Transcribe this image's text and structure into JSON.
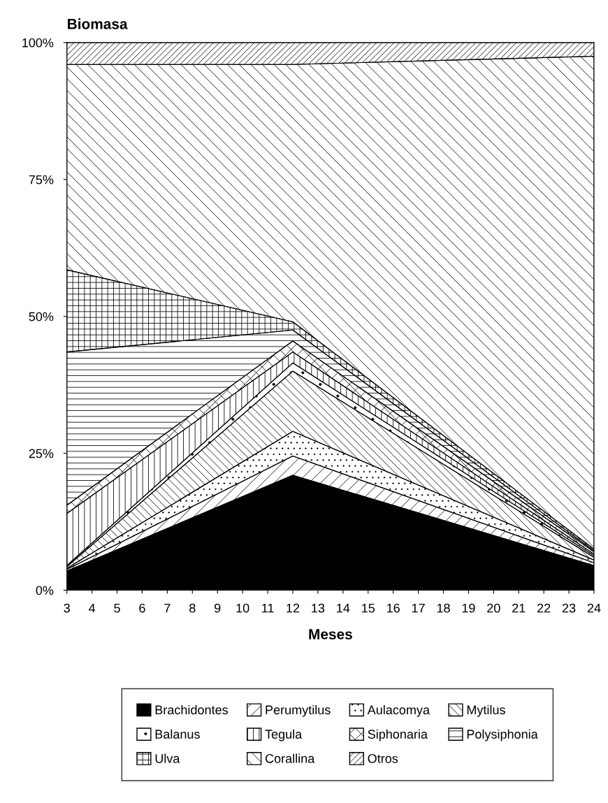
{
  "chart_data": {
    "type": "area",
    "stacked": true,
    "title": "Biomasa",
    "xlabel": "Meses",
    "x": [
      3,
      12,
      24
    ],
    "xlim": [
      3,
      24
    ],
    "xticks": [
      3,
      4,
      5,
      6,
      7,
      8,
      9,
      10,
      11,
      12,
      13,
      14,
      15,
      16,
      17,
      18,
      19,
      20,
      21,
      22,
      23,
      24
    ],
    "ylim": [
      0,
      100
    ],
    "yticks": [
      {
        "value": 0,
        "label": "0%"
      },
      {
        "value": 25,
        "label": "25%"
      },
      {
        "value": 50,
        "label": "50%"
      },
      {
        "value": 75,
        "label": "75%"
      },
      {
        "value": 100,
        "label": "100%"
      }
    ],
    "grid": false,
    "legend": "bottom",
    "series": [
      {
        "name": "Brachidontes",
        "color": "#000000",
        "values": [
          3.5,
          21,
          4.5
        ]
      },
      {
        "name": "Perumytilus",
        "color": "#000000",
        "values": [
          0.3,
          3.5,
          0.5
        ]
      },
      {
        "name": "Aulacomya",
        "color": "#000000",
        "values": [
          0.2,
          4.5,
          0.5
        ]
      },
      {
        "name": "Mytilus",
        "color": "#000000",
        "values": [
          0.3,
          11,
          0.5
        ]
      },
      {
        "name": "Balanus",
        "color": "#000000",
        "values": [
          0.2,
          1.5,
          0.3
        ]
      },
      {
        "name": "Tegula",
        "color": "#000000",
        "values": [
          9.5,
          2,
          0.3
        ]
      },
      {
        "name": "Siphonaria",
        "color": "#000000",
        "values": [
          1.5,
          2,
          0.4
        ]
      },
      {
        "name": "Polysiphonia",
        "color": "#000000",
        "values": [
          28,
          2,
          0.2
        ]
      },
      {
        "name": "Ulva",
        "color": "#000000",
        "values": [
          15,
          1.5,
          0.3
        ]
      },
      {
        "name": "Corallina",
        "color": "#000000",
        "values": [
          37.5,
          47,
          90
        ]
      },
      {
        "name": "Otros",
        "color": "#000000",
        "values": [
          4,
          4,
          2.5
        ]
      }
    ]
  }
}
